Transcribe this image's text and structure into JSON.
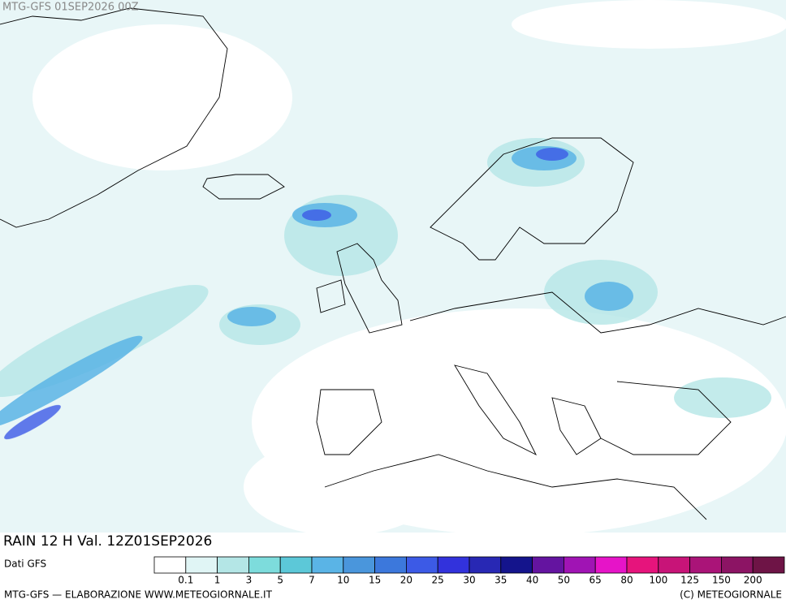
{
  "header": {
    "title": "MTG-GFS 01SEP2026 00Z"
  },
  "panel": {
    "field": "RAIN 12 H Val. 12Z01SEP2026",
    "source": "Dati GFS",
    "scale_labels": [
      "0.1",
      "1",
      "3",
      "5",
      "7",
      "10",
      "15",
      "20",
      "25",
      "30",
      "35",
      "40",
      "50",
      "65",
      "80",
      "100",
      "125",
      "150",
      "200"
    ]
  },
  "footer": {
    "left": "MTG-GFS — ELABORAZIONE WWW.METEOGIORNALE.IT",
    "right": "(C) METEOGIORNALE"
  }
}
